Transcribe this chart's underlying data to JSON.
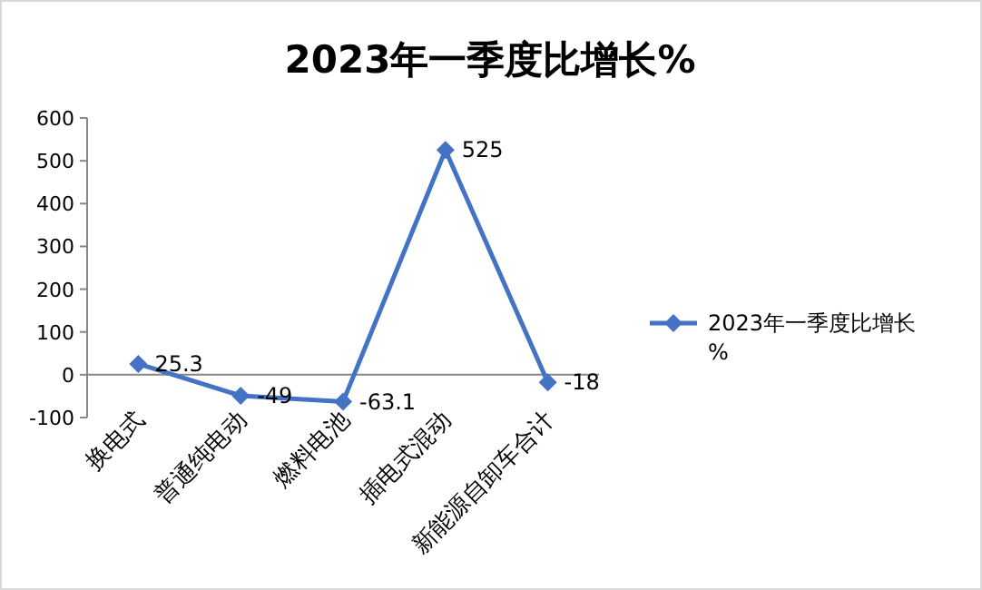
{
  "chart_data": {
    "type": "line",
    "title": "2023年一季度比增长%",
    "categories": [
      "换电式",
      "普通纯电动",
      "燃料电池",
      "插电式混动",
      "新能源自卸车合计"
    ],
    "series": [
      {
        "name": "2023年一季度比增长%",
        "color": "#4472c4",
        "values": [
          25.3,
          -49,
          -63.1,
          525,
          -18
        ]
      }
    ],
    "ylim": [
      -100,
      600
    ],
    "yticks": [
      -100,
      0,
      100,
      200,
      300,
      400,
      500,
      600
    ],
    "marker": "diamond",
    "data_labels": true,
    "legend": "right",
    "grid": false
  }
}
